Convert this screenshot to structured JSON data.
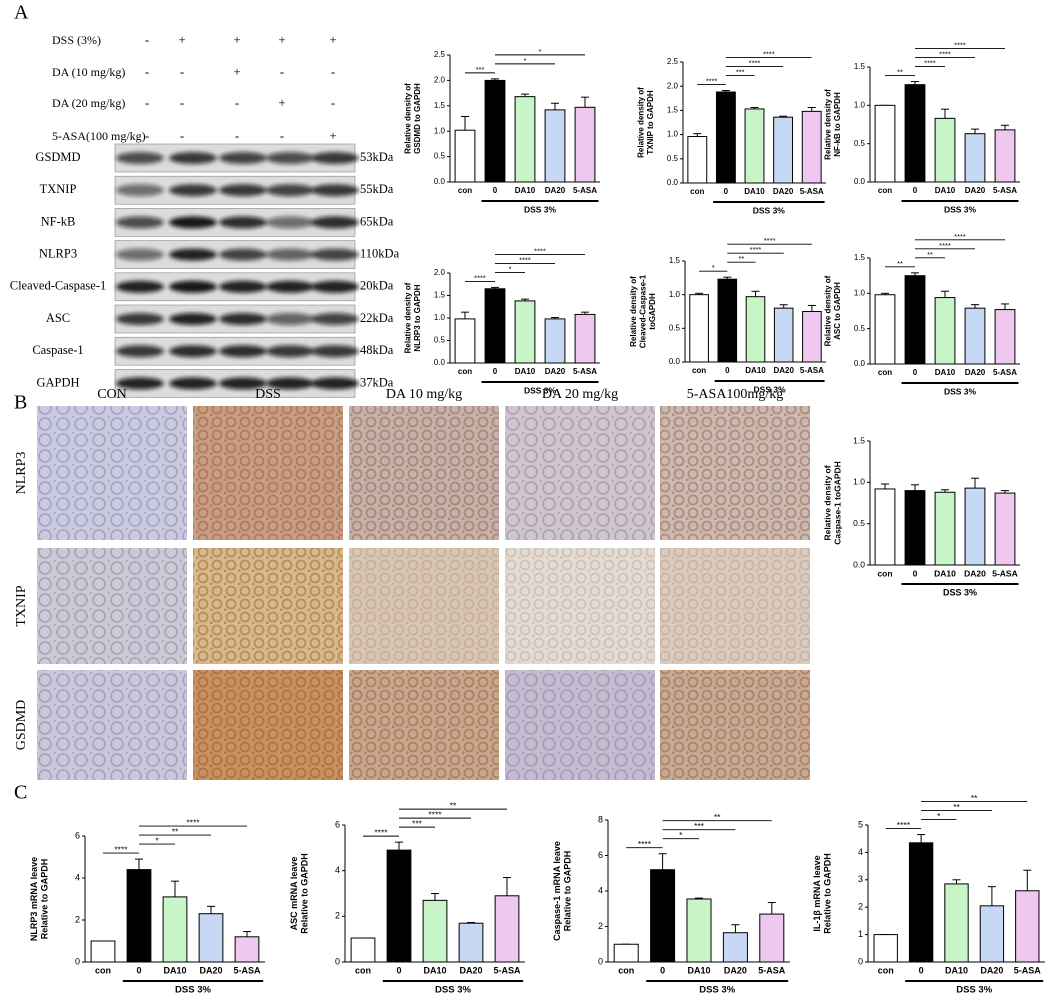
{
  "panel_labels": [
    "A",
    "B",
    "C"
  ],
  "western_blot": {
    "treatments": [
      {
        "label": "DSS (3%)",
        "lanes": [
          "-",
          "+",
          "+",
          "+",
          "+"
        ]
      },
      {
        "label": "DA (10 mg/kg)",
        "lanes": [
          "-",
          "-",
          "+",
          "-",
          "-"
        ]
      },
      {
        "label": "DA (20 mg/kg)",
        "lanes": [
          "-",
          "-",
          "-",
          "+",
          "-"
        ]
      },
      {
        "label": "5-ASA(100 mg/kg)",
        "lanes": [
          "-",
          "-",
          "-",
          "-",
          "+"
        ]
      }
    ],
    "proteins": [
      {
        "name": "GSDMD",
        "size": "53kDa"
      },
      {
        "name": "TXNIP",
        "size": "55kDa"
      },
      {
        "name": "NF-kB",
        "size": "65kDa"
      },
      {
        "name": "NLRP3",
        "size": "110kDa"
      },
      {
        "name": "Cleaved-Caspase-1",
        "size": "20kDa"
      },
      {
        "name": "ASC",
        "size": "22kDa"
      },
      {
        "name": "Caspase-1",
        "size": "48kDa"
      },
      {
        "name": "GAPDH",
        "size": "37kDa"
      }
    ]
  },
  "ihc": {
    "columns": [
      "CON",
      "DSS",
      "DA 10 mg/kg",
      "DA 20 mg/kg",
      "5-ASA100mg/kg"
    ],
    "rows": [
      "NLRP3",
      "TXNIP",
      "GSDMD"
    ]
  },
  "chart_data": [
    {
      "type": "bar",
      "y_label": [
        "Relative density of",
        "GSDMD to GAPDH"
      ],
      "categories": [
        "con",
        "0",
        "DA10",
        "DA20",
        "5-ASA"
      ],
      "group_label": "DSS 3%",
      "values": [
        1.02,
        2.0,
        1.68,
        1.42,
        1.47
      ],
      "errors": [
        0.27,
        0.03,
        0.05,
        0.13,
        0.2
      ],
      "colors": [
        "#ffffff",
        "#000000",
        "#c8f5c8",
        "#c6d8f4",
        "#efc8f0"
      ],
      "ylim": [
        0,
        2.5
      ],
      "yticks": [
        {
          "value": 0,
          "label": "0.0"
        },
        0.5,
        {
          "value": 1,
          "label": "1.0"
        },
        1.5,
        {
          "value": 2,
          "label": "2.0"
        },
        2.5
      ],
      "comparisons": [
        {
          "between": [
            "con",
            "0"
          ],
          "label": "***"
        },
        {
          "between": [
            "0",
            "DA20"
          ],
          "label": "*"
        },
        {
          "between": [
            "0",
            "5-ASA"
          ],
          "label": "*"
        }
      ]
    },
    {
      "type": "bar",
      "y_label": [
        "Relative density of",
        "TXNIP to GAPDH"
      ],
      "categories": [
        "con",
        "0",
        "DA10",
        "DA20",
        "5-ASA"
      ],
      "group_label": "DSS 3%",
      "values": [
        0.96,
        1.88,
        1.53,
        1.36,
        1.48
      ],
      "errors": [
        0.06,
        0.03,
        0.03,
        0.02,
        0.08
      ],
      "colors": [
        "#ffffff",
        "#000000",
        "#c8f5c8",
        "#c6d8f4",
        "#efc8f0"
      ],
      "ylim": [
        0,
        2.5
      ],
      "yticks": [
        {
          "value": 0,
          "label": "0.0"
        },
        0.5,
        {
          "value": 1,
          "label": "1.0"
        },
        1.5,
        {
          "value": 2,
          "label": "2.0"
        },
        2.5
      ],
      "comparisons": [
        {
          "between": [
            "con",
            "0"
          ],
          "label": "****"
        },
        {
          "between": [
            "0",
            "DA10"
          ],
          "label": "***"
        },
        {
          "between": [
            "0",
            "DA20"
          ],
          "label": "****"
        },
        {
          "between": [
            "0",
            "5-ASA"
          ],
          "label": "****"
        }
      ]
    },
    {
      "type": "bar",
      "y_label": [
        "Relative density of",
        "NF-kB to GAPDH"
      ],
      "categories": [
        "con",
        "0",
        "DA10",
        "DA20",
        "5-ASA"
      ],
      "group_label": "DSS 3%",
      "values": [
        1.0,
        1.27,
        0.83,
        0.63,
        0.68
      ],
      "errors": [
        0,
        0.04,
        0.12,
        0.06,
        0.06
      ],
      "colors": [
        "#ffffff",
        "#000000",
        "#c8f5c8",
        "#c6d8f4",
        "#efc8f0"
      ],
      "ylim": [
        0,
        1.5
      ],
      "yticks": [
        {
          "value": 0,
          "label": "0.0"
        },
        0.5,
        {
          "value": 1,
          "label": "1.0"
        },
        1.5
      ],
      "comparisons": [
        {
          "between": [
            "con",
            "0"
          ],
          "label": "**"
        },
        {
          "between": [
            "0",
            "DA10"
          ],
          "label": "****"
        },
        {
          "between": [
            "0",
            "DA20"
          ],
          "label": "****"
        },
        {
          "between": [
            "0",
            "5-ASA"
          ],
          "label": "****"
        }
      ]
    },
    {
      "type": "bar",
      "y_label": [
        "Relative density of",
        "NLRP3 to GAPDH"
      ],
      "categories": [
        "con",
        "0",
        "DA10",
        "DA20",
        "5-ASA"
      ],
      "group_label": "DSS 3%",
      "values": [
        0.98,
        1.65,
        1.38,
        0.98,
        1.08
      ],
      "errors": [
        0.15,
        0.03,
        0.04,
        0.03,
        0.05
      ],
      "colors": [
        "#ffffff",
        "#000000",
        "#c8f5c8",
        "#c6d8f4",
        "#efc8f0"
      ],
      "ylim": [
        0,
        2
      ],
      "yticks": [
        {
          "value": 0,
          "label": "0.0"
        },
        0.5,
        {
          "value": 1,
          "label": "1.0"
        },
        1.5,
        {
          "value": 2,
          "label": "2.0"
        }
      ],
      "comparisons": [
        {
          "between": [
            "con",
            "0"
          ],
          "label": "****"
        },
        {
          "between": [
            "0",
            "DA10"
          ],
          "label": "*"
        },
        {
          "between": [
            "0",
            "DA20"
          ],
          "label": "****"
        },
        {
          "between": [
            "0",
            "5-ASA"
          ],
          "label": "****"
        }
      ]
    },
    {
      "type": "bar",
      "y_label": [
        "Relative density of",
        "Cleaved-Caspase-1",
        "toGAPDH"
      ],
      "categories": [
        "con",
        "0",
        "DA10",
        "DA20",
        "5-ASA"
      ],
      "group_label": "DSS 3%",
      "values": [
        1.0,
        1.23,
        0.97,
        0.8,
        0.75
      ],
      "errors": [
        0.02,
        0.03,
        0.08,
        0.05,
        0.09
      ],
      "colors": [
        "#ffffff",
        "#000000",
        "#c8f5c8",
        "#c6d8f4",
        "#efc8f0"
      ],
      "ylim": [
        0,
        1.5
      ],
      "yticks": [
        {
          "value": 0,
          "label": "0.0"
        },
        0.5,
        {
          "value": 1,
          "label": "1.0"
        },
        1.5
      ],
      "comparisons": [
        {
          "between": [
            "con",
            "0"
          ],
          "label": "*"
        },
        {
          "between": [
            "0",
            "DA10"
          ],
          "label": "**"
        },
        {
          "between": [
            "0",
            "DA20"
          ],
          "label": "****"
        },
        {
          "between": [
            "0",
            "5-ASA"
          ],
          "label": "****"
        }
      ]
    },
    {
      "type": "bar",
      "y_label": [
        "Relative density of",
        "ASC to GAPDH"
      ],
      "categories": [
        "con",
        "0",
        "DA10",
        "DA20",
        "5-ASA"
      ],
      "group_label": "DSS 3%",
      "values": [
        0.98,
        1.25,
        0.94,
        0.79,
        0.77
      ],
      "errors": [
        0.02,
        0.04,
        0.09,
        0.05,
        0.08
      ],
      "colors": [
        "#ffffff",
        "#000000",
        "#c8f5c8",
        "#c6d8f4",
        "#efc8f0"
      ],
      "ylim": [
        0,
        1.5
      ],
      "yticks": [
        {
          "value": 0,
          "label": "0.0"
        },
        0.5,
        {
          "value": 1,
          "label": "1.0"
        },
        1.5
      ],
      "comparisons": [
        {
          "between": [
            "con",
            "0"
          ],
          "label": "**"
        },
        {
          "between": [
            "0",
            "DA10"
          ],
          "label": "**"
        },
        {
          "between": [
            "0",
            "DA20"
          ],
          "label": "****"
        },
        {
          "between": [
            "0",
            "5-ASA"
          ],
          "label": "****"
        }
      ]
    },
    {
      "type": "bar",
      "y_label": [
        "Relative density of",
        "Caspase-1 toGAPDH"
      ],
      "categories": [
        "con",
        "0",
        "DA10",
        "DA20",
        "5-ASA"
      ],
      "group_label": "DSS 3%",
      "values": [
        0.92,
        0.9,
        0.88,
        0.93,
        0.87
      ],
      "errors": [
        0.06,
        0.07,
        0.03,
        0.12,
        0.03
      ],
      "colors": [
        "#ffffff",
        "#000000",
        "#c8f5c8",
        "#c6d8f4",
        "#efc8f0"
      ],
      "ylim": [
        0,
        1.5
      ],
      "yticks": [
        {
          "value": 0,
          "label": "0.0"
        },
        0.5,
        {
          "value": 1,
          "label": "1.0"
        },
        1.5
      ],
      "comparisons": []
    },
    {
      "type": "bar",
      "y_label": [
        "NLRP3 mRNA leave",
        "Relative to GAPDH"
      ],
      "categories": [
        "con",
        "0",
        "DA10",
        "DA20",
        "5-ASA"
      ],
      "group_label": "DSS 3%",
      "values": [
        1.0,
        4.4,
        3.1,
        2.3,
        1.2
      ],
      "errors": [
        0,
        0.5,
        0.75,
        0.35,
        0.25
      ],
      "colors": [
        "#ffffff",
        "#000000",
        "#c8f5c8",
        "#c6d8f4",
        "#efc8f0"
      ],
      "ylim": [
        0,
        6
      ],
      "yticks": [
        0,
        2,
        4,
        6
      ],
      "comparisons": [
        {
          "between": [
            "con",
            "0"
          ],
          "label": "****"
        },
        {
          "between": [
            "0",
            "DA10"
          ],
          "label": "*"
        },
        {
          "between": [
            "0",
            "DA20"
          ],
          "label": "**"
        },
        {
          "between": [
            "0",
            "5-ASA"
          ],
          "label": "****"
        }
      ]
    },
    {
      "type": "bar",
      "y_label": [
        "ASC mRNA leave",
        "Relative to GAPDH"
      ],
      "categories": [
        "con",
        "0",
        "DA10",
        "DA20",
        "5-ASA"
      ],
      "group_label": "DSS 3%",
      "values": [
        1.05,
        4.9,
        2.7,
        1.7,
        2.9
      ],
      "errors": [
        0,
        0.35,
        0.3,
        0.03,
        0.8
      ],
      "colors": [
        "#ffffff",
        "#000000",
        "#c8f5c8",
        "#c6d8f4",
        "#efc8f0"
      ],
      "ylim": [
        0,
        6
      ],
      "yticks": [
        0,
        2,
        4,
        6
      ],
      "comparisons": [
        {
          "between": [
            "con",
            "0"
          ],
          "label": "****"
        },
        {
          "between": [
            "0",
            "DA10"
          ],
          "label": "***"
        },
        {
          "between": [
            "0",
            "DA20"
          ],
          "label": "****"
        },
        {
          "between": [
            "0",
            "5-ASA"
          ],
          "label": "**"
        }
      ]
    },
    {
      "type": "bar",
      "y_label": [
        "Caspase-1 mRNA leave",
        "Relative to GAPDH"
      ],
      "categories": [
        "con",
        "0",
        "DA10",
        "DA20",
        "5-ASA"
      ],
      "group_label": "DSS 3%",
      "values": [
        1.0,
        5.2,
        3.55,
        1.65,
        2.7
      ],
      "errors": [
        0,
        0.9,
        0.05,
        0.45,
        0.65
      ],
      "colors": [
        "#ffffff",
        "#000000",
        "#c8f5c8",
        "#c6d8f4",
        "#efc8f0"
      ],
      "ylim": [
        0,
        8
      ],
      "yticks": [
        0,
        2,
        4,
        6,
        8
      ],
      "comparisons": [
        {
          "between": [
            "con",
            "0"
          ],
          "label": "****"
        },
        {
          "between": [
            "0",
            "DA10"
          ],
          "label": "*"
        },
        {
          "between": [
            "0",
            "DA20"
          ],
          "label": "***"
        },
        {
          "between": [
            "0",
            "5-ASA"
          ],
          "label": "**"
        }
      ]
    },
    {
      "type": "bar",
      "y_label": [
        "IL-1β mRNA leave",
        "Relative to GAPDH"
      ],
      "categories": [
        "con",
        "0",
        "DA10",
        "DA20",
        "5-ASA"
      ],
      "group_label": "DSS 3%",
      "values": [
        1.0,
        4.35,
        2.85,
        2.05,
        2.6
      ],
      "errors": [
        0,
        0.3,
        0.15,
        0.7,
        0.75
      ],
      "colors": [
        "#ffffff",
        "#000000",
        "#c8f5c8",
        "#c6d8f4",
        "#efc8f0"
      ],
      "ylim": [
        0,
        5
      ],
      "yticks": [
        0,
        1,
        2,
        3,
        4,
        5
      ],
      "comparisons": [
        {
          "between": [
            "con",
            "0"
          ],
          "label": "****"
        },
        {
          "between": [
            "0",
            "DA10"
          ],
          "label": "*"
        },
        {
          "between": [
            "0",
            "DA20"
          ],
          "label": "**"
        },
        {
          "between": [
            "0",
            "5-ASA"
          ],
          "label": "**"
        }
      ]
    }
  ]
}
